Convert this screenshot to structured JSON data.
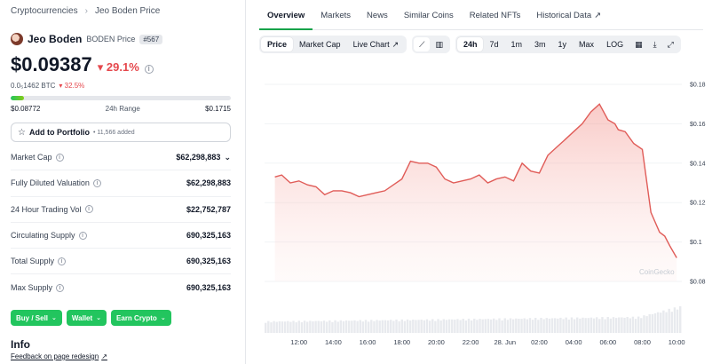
{
  "breadcrumb": {
    "root": "Cryptocurrencies",
    "current": "Jeo Boden Price"
  },
  "coin": {
    "name": "Jeo Boden",
    "symbol_label": "BODEN Price",
    "rank": "#567",
    "price": "$0.09387",
    "change": "▾ 29.1%",
    "btc_price": "0.0₅1462 BTC",
    "btc_change": "▾ 32.5%"
  },
  "range": {
    "low": "$0.08772",
    "label": "24h Range",
    "high": "$0.1715",
    "position_fraction": 0.06
  },
  "portfolio": {
    "label": "Add to Portfolio",
    "added": "• 11,566 added"
  },
  "stats": [
    {
      "label": "Market Cap",
      "value": "$62,298,883",
      "has_dropdown": true
    },
    {
      "label": "Fully Diluted Valuation",
      "value": "$62,298,883"
    },
    {
      "label": "24 Hour Trading Vol",
      "value": "$22,752,787"
    },
    {
      "label": "Circulating Supply",
      "value": "690,325,163"
    },
    {
      "label": "Total Supply",
      "value": "690,325,163"
    },
    {
      "label": "Max Supply",
      "value": "690,325,163"
    }
  ],
  "actions": [
    "Buy / Sell",
    "Wallet",
    "Earn Crypto"
  ],
  "info": {
    "title": "Info",
    "feedback": "Feedback on page redesign"
  },
  "tabs": [
    "Overview",
    "Markets",
    "News",
    "Similar Coins",
    "Related NFTs",
    "Historical Data"
  ],
  "chart_type_buttons": [
    "Price",
    "Market Cap",
    "Live Chart"
  ],
  "ranges": [
    "24h",
    "7d",
    "1m",
    "3m",
    "1y",
    "Max",
    "LOG"
  ],
  "colors": {
    "accent": "#16a34a",
    "down": "#e5484d",
    "line": "#e05c58",
    "button": "#22c55e"
  },
  "chart_data": {
    "type": "area",
    "title": "",
    "xlabel": "",
    "ylabel": "",
    "y_ticks": [
      "$0.18",
      "$0.16",
      "$0.14",
      "$0.12",
      "$0.1",
      "$0.08"
    ],
    "x_ticks": [
      "12:00",
      "14:00",
      "16:00",
      "18:00",
      "20:00",
      "22:00",
      "28. Jun",
      "02:00",
      "04:00",
      "06:00",
      "08:00",
      "10:00"
    ],
    "ylim": [
      0.08,
      0.18
    ],
    "watermark": "CoinGecko",
    "series": [
      {
        "x": [
          10.6,
          11.0,
          11.5,
          12.0,
          12.5,
          13.0,
          13.5,
          14.0,
          14.5,
          15.0,
          15.5,
          16.0,
          16.5,
          17.0,
          17.5,
          18.0,
          18.5,
          19.0,
          19.5,
          20.0,
          20.5,
          21.0,
          21.5,
          22.0,
          22.5,
          23.0,
          23.5,
          24.0,
          24.5,
          25.0,
          25.5,
          26.0,
          26.5,
          27.0,
          27.5,
          28.0,
          28.5,
          29.0,
          29.5,
          30.0,
          30.4,
          30.6,
          31.0,
          31.5,
          32.0,
          32.5,
          33.0,
          33.3,
          33.6,
          34.0
        ],
        "y": [
          0.133,
          0.134,
          0.13,
          0.131,
          0.129,
          0.128,
          0.124,
          0.126,
          0.126,
          0.125,
          0.123,
          0.124,
          0.125,
          0.126,
          0.129,
          0.132,
          0.141,
          0.14,
          0.14,
          0.138,
          0.132,
          0.13,
          0.131,
          0.132,
          0.134,
          0.13,
          0.132,
          0.133,
          0.131,
          0.14,
          0.136,
          0.135,
          0.144,
          0.148,
          0.152,
          0.156,
          0.16,
          0.166,
          0.17,
          0.162,
          0.16,
          0.157,
          0.156,
          0.15,
          0.147,
          0.115,
          0.105,
          0.103,
          0.098,
          0.092
        ]
      }
    ],
    "volume_max": 1
  }
}
